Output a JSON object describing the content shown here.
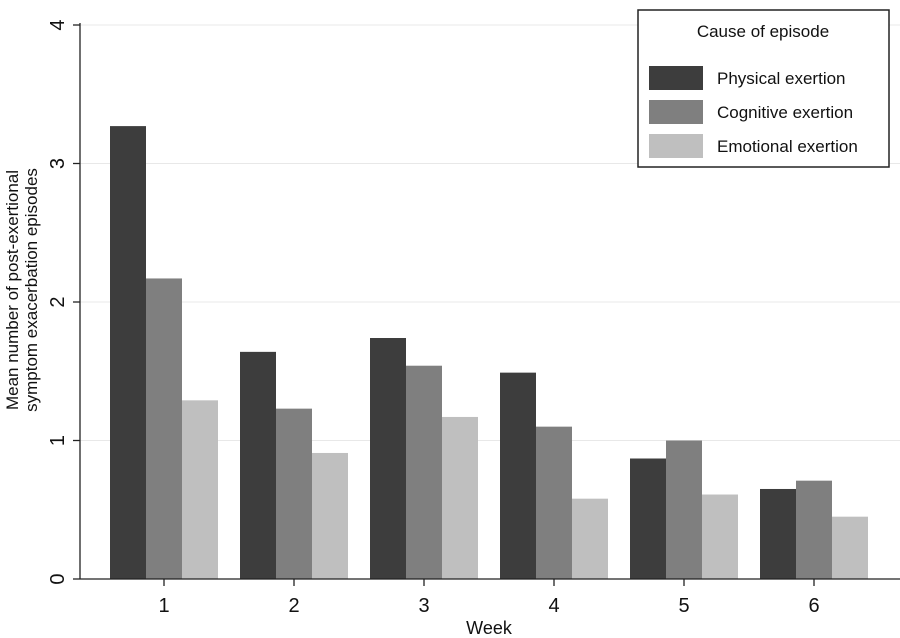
{
  "chart_data": {
    "type": "bar",
    "categories": [
      "1",
      "2",
      "3",
      "4",
      "5",
      "6"
    ],
    "series": [
      {
        "name": "Physical exertion",
        "values": [
          3.27,
          1.64,
          1.74,
          1.49,
          0.87,
          0.65
        ],
        "color": "#3d3d3d"
      },
      {
        "name": "Cognitive exertion",
        "values": [
          2.17,
          1.23,
          1.54,
          1.1,
          1.0,
          0.71
        ],
        "color": "#7f7f7f"
      },
      {
        "name": "Emotional exertion",
        "values": [
          1.29,
          0.91,
          1.17,
          0.58,
          0.61,
          0.45
        ],
        "color": "#bfbfbf"
      }
    ],
    "xlabel": "Week",
    "ylabel_lines": [
      "Mean number of post-exertional",
      "symptom exacerbation episodes"
    ],
    "ylim": [
      0,
      4
    ],
    "yticks": [
      "0",
      "1",
      "2",
      "3",
      "4"
    ],
    "grid": true,
    "legend": {
      "title": "Cause of episode",
      "position": "top-right"
    }
  }
}
